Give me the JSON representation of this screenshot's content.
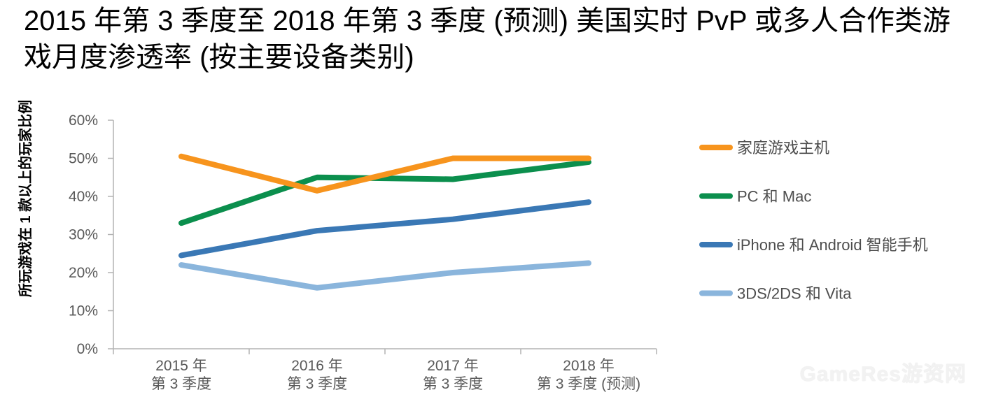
{
  "title": "2015 年第 3 季度至 2018 年第 3 季度 (预测) 美国实时 PvP 或多人合作类游戏月度渗透率 (按主要设备类别)",
  "watermark": "GameRes游资网",
  "chart_data": {
    "type": "line",
    "title": "2015 年第 3 季度至 2018 年第 3 季度 (预测) 美国实时 PvP 或多人合作类游戏月度渗透率 (按主要设备类别)",
    "ylabel": "所玩游戏在 1 款以上的玩家比例",
    "xlabel": "",
    "categories": [
      [
        "2015 年",
        "第 3 季度"
      ],
      [
        "2016 年",
        "第 3 季度"
      ],
      [
        "2017 年",
        "第 3 季度"
      ],
      [
        "2018 年",
        "第 3 季度 (预测)"
      ]
    ],
    "ylim": [
      0,
      60
    ],
    "yticks": [
      "0%",
      "10%",
      "20%",
      "30%",
      "40%",
      "50%",
      "60%"
    ],
    "grid": false,
    "legend_position": "right",
    "series": [
      {
        "name": "家庭游戏主机",
        "color": "#f7941d",
        "values": [
          50.5,
          41.5,
          50,
          50
        ]
      },
      {
        "name": "PC 和 Mac",
        "color": "#0b8f4d",
        "values": [
          33,
          45,
          44.5,
          49
        ]
      },
      {
        "name": "iPhone 和 Android 智能手机",
        "color": "#3a78b5",
        "values": [
          24.5,
          31,
          34,
          38.5
        ]
      },
      {
        "name": "3DS/2DS 和 Vita",
        "color": "#8ab5dc",
        "values": [
          22,
          16,
          20,
          22.5
        ]
      }
    ]
  }
}
